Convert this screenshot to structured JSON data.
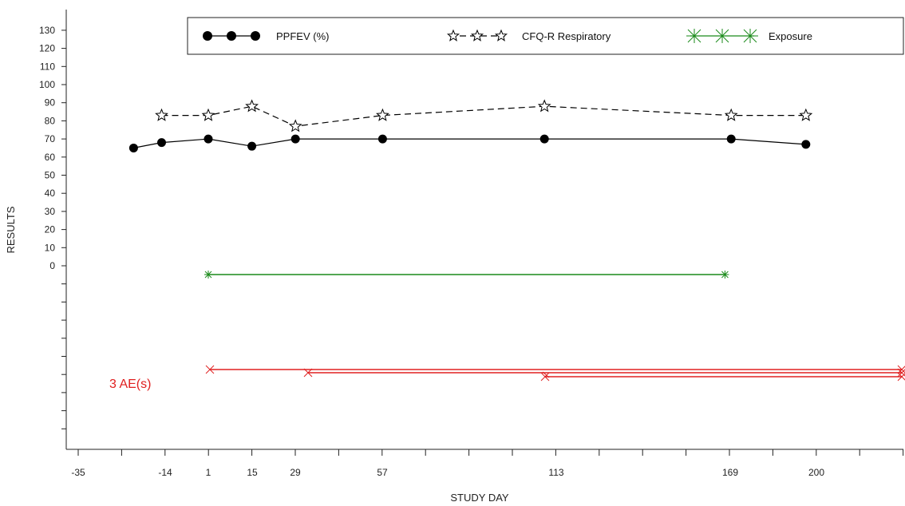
{
  "chart_data": {
    "type": "line",
    "xlabel": "STUDY DAY",
    "ylabel": "RESULTS",
    "xlim": [
      -38,
      250
    ],
    "ylim": [
      0,
      135
    ],
    "x_ticks": [
      -35,
      -14,
      1,
      15,
      29,
      57,
      113,
      169,
      200
    ],
    "y_ticks": [
      0,
      10,
      20,
      30,
      40,
      50,
      60,
      70,
      80,
      90,
      100,
      110,
      120,
      130
    ],
    "legend": {
      "position": "top",
      "entries": [
        {
          "label": "PPFEV (%)",
          "marker": "filled-circle",
          "line": "solid",
          "color": "#000000"
        },
        {
          "label": "CFQ-R Respiratory",
          "marker": "star",
          "line": "dashed",
          "color": "#000000"
        },
        {
          "label": "Exposure",
          "marker": "asterisk",
          "line": "solid",
          "color": "#1a8a1a"
        }
      ]
    },
    "series": [
      {
        "name": "PPFEV (%)",
        "color": "#000000",
        "line": "solid",
        "marker": "filled-circle",
        "points": [
          [
            -23,
            65
          ],
          [
            -14,
            68
          ],
          [
            1,
            70
          ],
          [
            15,
            66
          ],
          [
            29,
            70
          ],
          [
            57,
            70
          ],
          [
            109,
            70
          ],
          [
            169,
            70
          ],
          [
            193,
            67
          ]
        ]
      },
      {
        "name": "CFQ-R Respiratory",
        "color": "#000000",
        "line": "dashed",
        "marker": "star",
        "points": [
          [
            -14,
            83
          ],
          [
            1,
            83
          ],
          [
            15,
            88
          ],
          [
            29,
            77
          ],
          [
            57,
            83
          ],
          [
            109,
            88
          ],
          [
            169,
            83
          ],
          [
            193,
            83
          ]
        ]
      }
    ],
    "exposure": {
      "name": "Exposure",
      "color": "#1a8a1a",
      "start": 1,
      "end": 167
    },
    "adverse_events": {
      "label": "3 AE(s)",
      "color": "#e02020",
      "intervals": [
        {
          "start": 1,
          "end": 250,
          "lane": 0
        },
        {
          "start": 32,
          "end": 250,
          "lane": 1
        },
        {
          "start": 108,
          "end": 250,
          "lane": 2
        }
      ]
    }
  }
}
